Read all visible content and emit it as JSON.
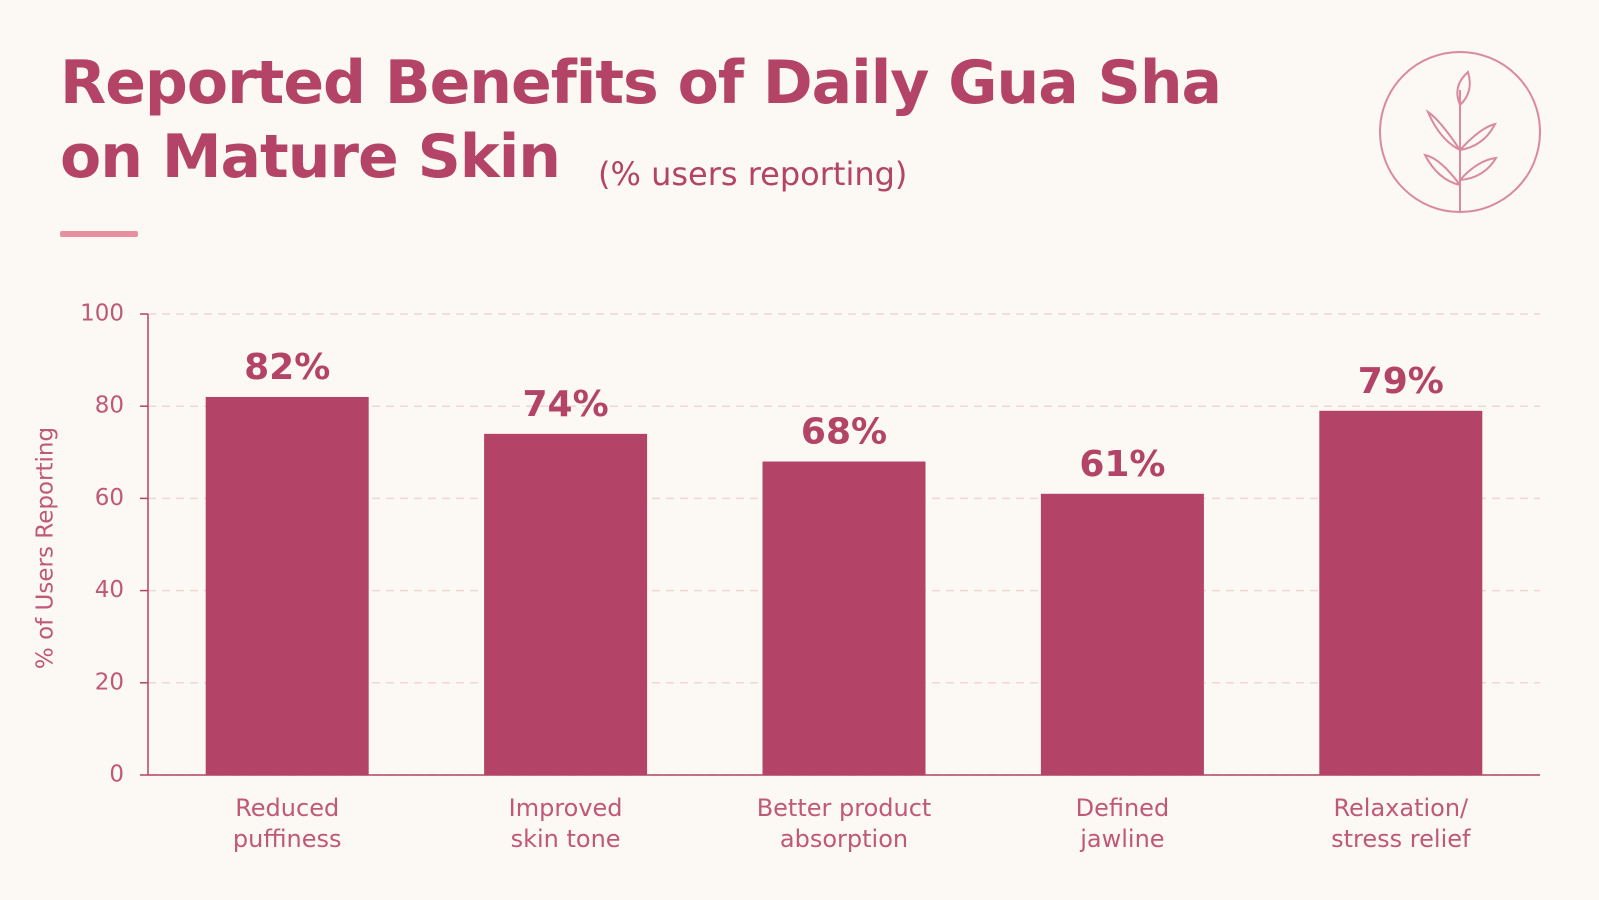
{
  "chart_data": {
    "type": "bar",
    "title": "Reported Benefits of Daily Gua Sha\non Mature Skin",
    "subtitle": "(% users reporting)",
    "y_label": "% of Users Reporting",
    "categories": [
      "Reduced\npuffiness",
      "Improved\nskin tone",
      "Better product\nabsorption",
      "Defined\njawline",
      "Relaxation/\nstress relief"
    ],
    "values": [
      82,
      74,
      68,
      61,
      79
    ],
    "value_labels": [
      "82%",
      "74%",
      "68%",
      "61%",
      "79%"
    ],
    "color": "#b34468",
    "ylim": [
      0,
      100
    ],
    "yticks": [
      0,
      20,
      40,
      60,
      80,
      100
    ],
    "grid": true
  }
}
